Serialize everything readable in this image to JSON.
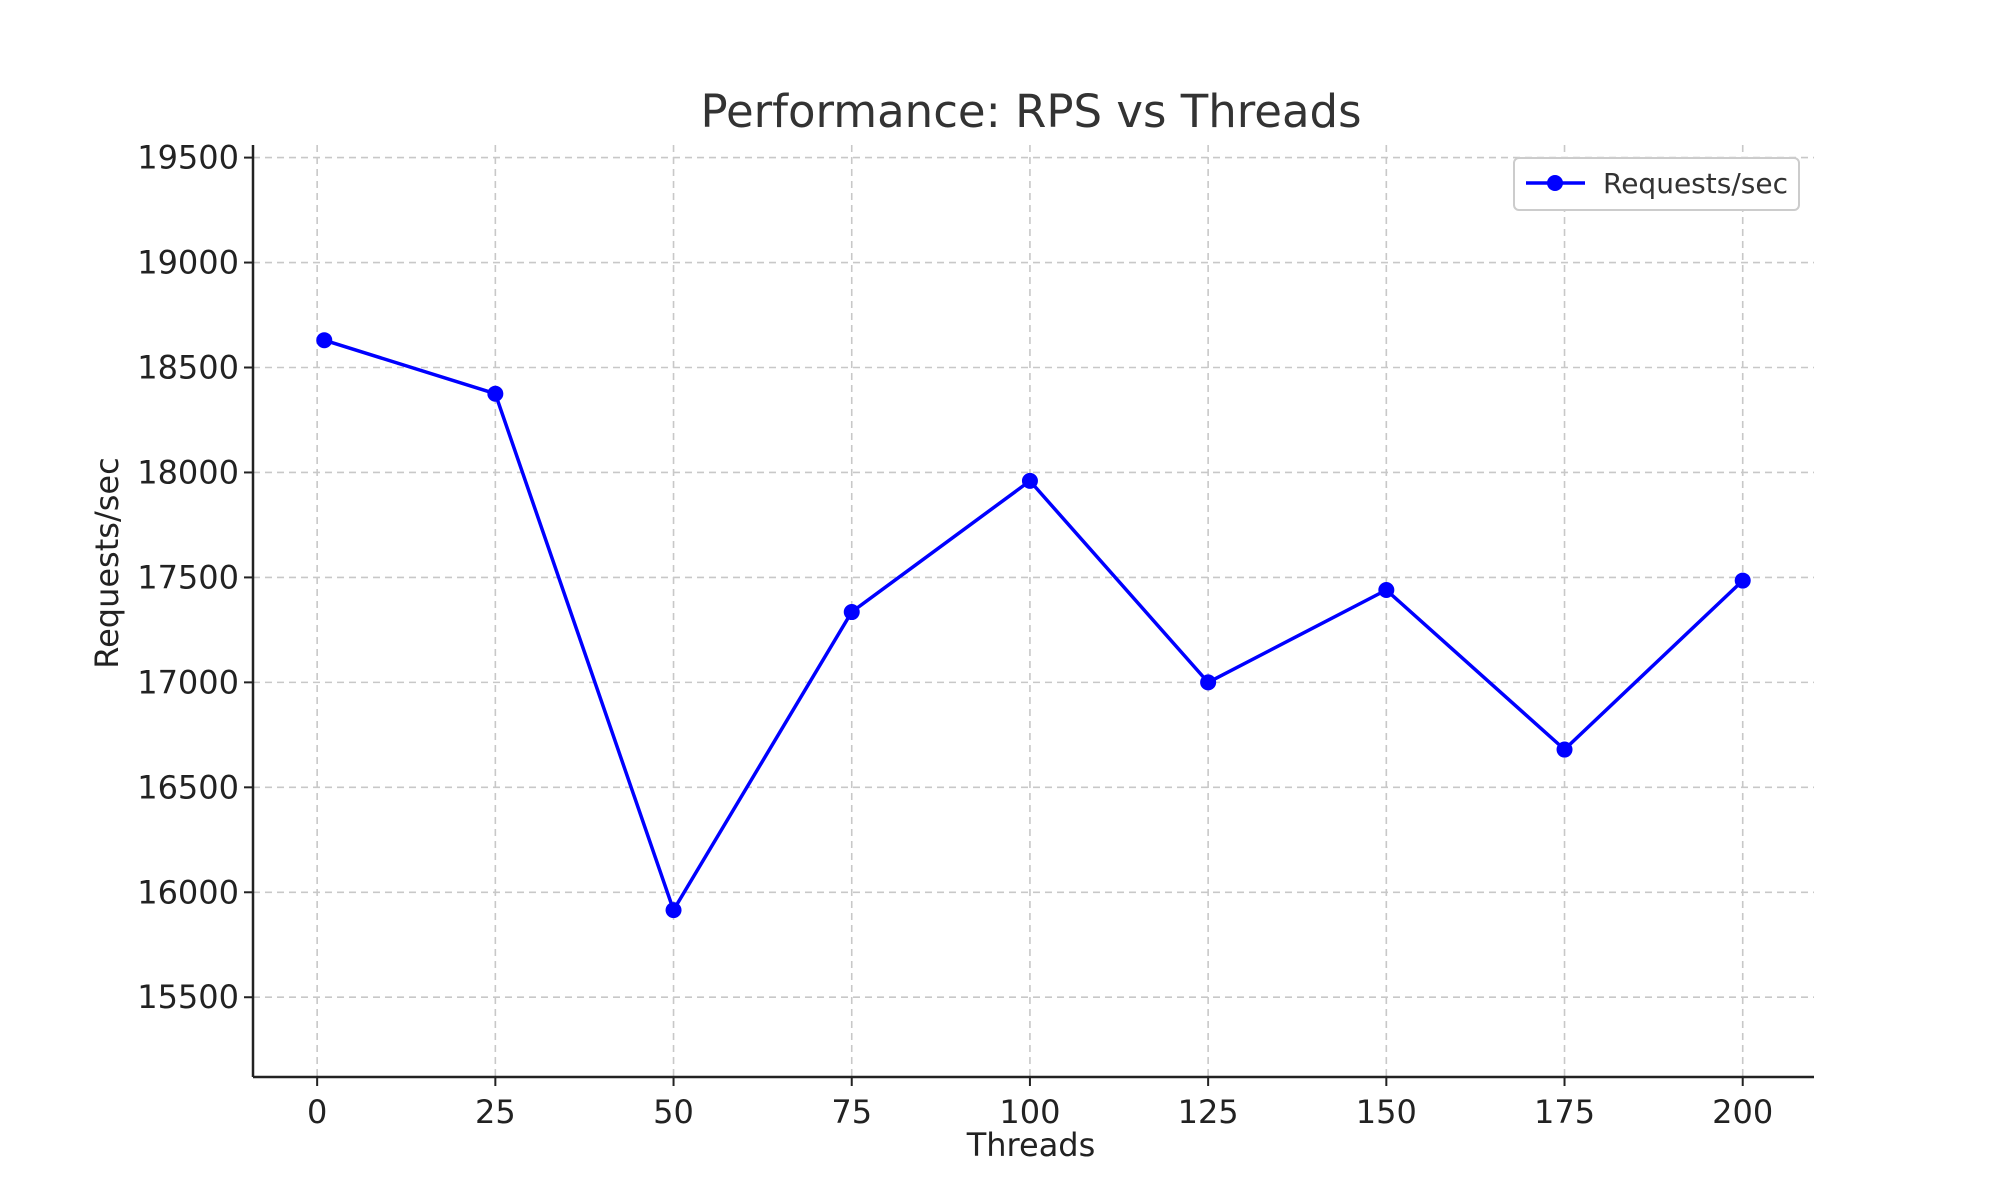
{
  "chart_data": {
    "type": "line",
    "title": "Performance: RPS vs Threads",
    "xlabel": "Threads",
    "ylabel": "Requests/sec",
    "x": [
      1,
      25,
      50,
      75,
      100,
      125,
      150,
      175,
      200
    ],
    "series": [
      {
        "name": "Requests/sec",
        "color": "#0000ff",
        "marker": "circle",
        "values": [
          18630,
          18375,
          15915,
          17335,
          17960,
          17000,
          17440,
          16680,
          17485
        ]
      }
    ],
    "xticks": [
      0,
      25,
      50,
      75,
      100,
      125,
      150,
      175,
      200
    ],
    "yticks": [
      15500,
      16000,
      16500,
      17000,
      17500,
      18000,
      18500,
      19000,
      19500
    ],
    "xlim": [
      -9,
      210
    ],
    "ylim": [
      15120,
      19560
    ],
    "grid": true,
    "legend_position": "top-right"
  }
}
